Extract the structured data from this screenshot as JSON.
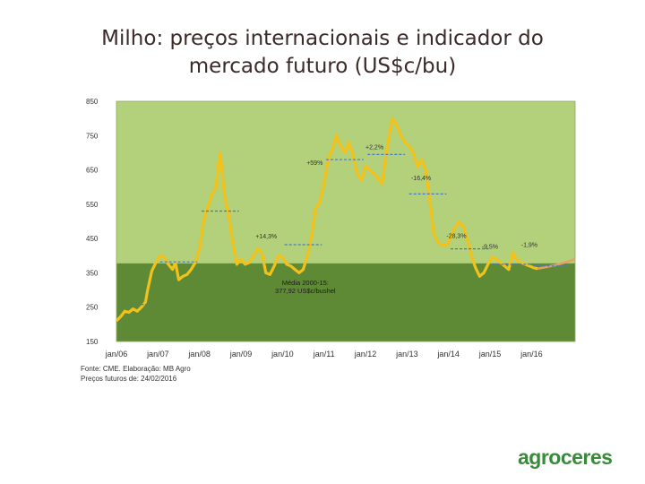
{
  "title_line1": "Milho: preços internacionais e indicador do",
  "title_line2": "mercado futuro (US$c/bu)",
  "source_line1": "Fonte: CME. Elaboração: MB Agro",
  "source_line2": "Preços futuros de:  24/02/2016",
  "logo_text": "agroceres",
  "colors": {
    "plot_bg_upper": "#b3d07a",
    "plot_bg_lower": "#5f8a35",
    "price_line": "#f2c21a",
    "futures_line": "#e8a060",
    "avg_dash": "#4a78c0",
    "logo": "#3a8a3c"
  },
  "chart_data": {
    "type": "line",
    "title": "Milho: preços internacionais e indicador do mercado futuro (US$c/bu)",
    "xlabel": "",
    "ylabel": "",
    "ylim": [
      150,
      850
    ],
    "yticks": [
      850,
      750,
      650,
      550,
      450,
      350,
      250,
      150
    ],
    "xlim": [
      2006.0,
      2017.05
    ],
    "xticks": [
      {
        "x": 2006,
        "label": "jan/06"
      },
      {
        "x": 2007,
        "label": "jan/07"
      },
      {
        "x": 2008,
        "label": "jan/08"
      },
      {
        "x": 2009,
        "label": "jan/09"
      },
      {
        "x": 2010,
        "label": "jan/10"
      },
      {
        "x": 2011,
        "label": "jan/11"
      },
      {
        "x": 2012,
        "label": "jan/12"
      },
      {
        "x": 2013,
        "label": "jan/13"
      },
      {
        "x": 2014,
        "label": "jan/14"
      },
      {
        "x": 2015,
        "label": "jan/15"
      },
      {
        "x": 2016,
        "label": "jan/16"
      }
    ],
    "average": {
      "value": 377.92,
      "label": "Média 2000-15:\n377,92 US$c/bushel"
    },
    "series": [
      {
        "kind": "historical",
        "points": [
          [
            2006.0,
            210
          ],
          [
            2006.1,
            222
          ],
          [
            2006.2,
            238
          ],
          [
            2006.3,
            235
          ],
          [
            2006.4,
            245
          ],
          [
            2006.5,
            238
          ],
          [
            2006.6,
            250
          ],
          [
            2006.7,
            265
          ],
          [
            2006.75,
            300
          ],
          [
            2006.85,
            355
          ],
          [
            2006.95,
            380
          ],
          [
            2007.05,
            400
          ],
          [
            2007.15,
            395
          ],
          [
            2007.25,
            375
          ],
          [
            2007.35,
            360
          ],
          [
            2007.42,
            380
          ],
          [
            2007.5,
            330
          ],
          [
            2007.6,
            340
          ],
          [
            2007.7,
            345
          ],
          [
            2007.8,
            360
          ],
          [
            2007.9,
            380
          ],
          [
            2008.0,
            420
          ],
          [
            2008.1,
            500
          ],
          [
            2008.2,
            540
          ],
          [
            2008.3,
            580
          ],
          [
            2008.4,
            600
          ],
          [
            2008.45,
            660
          ],
          [
            2008.5,
            700
          ],
          [
            2008.55,
            640
          ],
          [
            2008.6,
            575
          ],
          [
            2008.7,
            520
          ],
          [
            2008.8,
            440
          ],
          [
            2008.9,
            375
          ],
          [
            2009.0,
            390
          ],
          [
            2009.1,
            375
          ],
          [
            2009.2,
            380
          ],
          [
            2009.3,
            400
          ],
          [
            2009.4,
            420
          ],
          [
            2009.5,
            410
          ],
          [
            2009.6,
            350
          ],
          [
            2009.7,
            345
          ],
          [
            2009.8,
            370
          ],
          [
            2009.9,
            400
          ],
          [
            2010.0,
            395
          ],
          [
            2010.1,
            375
          ],
          [
            2010.2,
            370
          ],
          [
            2010.3,
            360
          ],
          [
            2010.4,
            350
          ],
          [
            2010.5,
            360
          ],
          [
            2010.6,
            400
          ],
          [
            2010.7,
            460
          ],
          [
            2010.8,
            540
          ],
          [
            2010.9,
            555
          ],
          [
            2011.0,
            610
          ],
          [
            2011.1,
            680
          ],
          [
            2011.2,
            710
          ],
          [
            2011.3,
            750
          ],
          [
            2011.4,
            720
          ],
          [
            2011.5,
            700
          ],
          [
            2011.6,
            730
          ],
          [
            2011.7,
            690
          ],
          [
            2011.8,
            640
          ],
          [
            2011.9,
            620
          ],
          [
            2012.0,
            660
          ],
          [
            2012.1,
            650
          ],
          [
            2012.2,
            640
          ],
          [
            2012.3,
            625
          ],
          [
            2012.4,
            610
          ],
          [
            2012.5,
            700
          ],
          [
            2012.6,
            770
          ],
          [
            2012.65,
            800
          ],
          [
            2012.75,
            780
          ],
          [
            2012.85,
            750
          ],
          [
            2012.95,
            730
          ],
          [
            2013.05,
            720
          ],
          [
            2013.15,
            700
          ],
          [
            2013.25,
            660
          ],
          [
            2013.35,
            680
          ],
          [
            2013.45,
            650
          ],
          [
            2013.55,
            560
          ],
          [
            2013.65,
            460
          ],
          [
            2013.75,
            440
          ],
          [
            2013.85,
            430
          ],
          [
            2013.95,
            430
          ],
          [
            2014.05,
            450
          ],
          [
            2014.15,
            480
          ],
          [
            2014.25,
            500
          ],
          [
            2014.35,
            485
          ],
          [
            2014.45,
            450
          ],
          [
            2014.55,
            400
          ],
          [
            2014.65,
            365
          ],
          [
            2014.75,
            340
          ],
          [
            2014.85,
            350
          ],
          [
            2014.95,
            375
          ],
          [
            2015.05,
            395
          ],
          [
            2015.15,
            390
          ],
          [
            2015.25,
            380
          ],
          [
            2015.35,
            370
          ],
          [
            2015.45,
            360
          ],
          [
            2015.55,
            410
          ],
          [
            2015.65,
            385
          ],
          [
            2015.75,
            380
          ],
          [
            2015.85,
            375
          ],
          [
            2015.95,
            370
          ],
          [
            2016.05,
            365
          ],
          [
            2016.15,
            362
          ]
        ]
      },
      {
        "kind": "futures",
        "points": [
          [
            2016.15,
            362
          ],
          [
            2016.4,
            368
          ],
          [
            2016.6,
            373
          ],
          [
            2016.8,
            380
          ],
          [
            2017.05,
            390
          ]
        ]
      }
    ],
    "annotations": [
      {
        "text": "+59%",
        "lx": 2010.58,
        "ly": 665,
        "x0": 2011.05,
        "x1": 2011.95,
        "y": 680
      },
      {
        "text": "+2,2%",
        "lx": 2012.0,
        "ly": 710,
        "x0": 2012.05,
        "x1": 2012.95,
        "y": 695
      },
      {
        "text": "-16,4%",
        "lx": 2013.1,
        "ly": 620,
        "x0": 2013.05,
        "x1": 2013.95,
        "y": 580
      },
      {
        "text": "+14,3%",
        "lx": 2009.35,
        "ly": 450,
        "x0": 2010.05,
        "x1": 2010.95,
        "y": 432
      },
      {
        "text": "-28,3%",
        "lx": 2013.95,
        "ly": 452,
        "x0": 2014.05,
        "x1": 2014.95,
        "y": 420
      },
      {
        "text": "-9,5%",
        "lx": 2014.8,
        "ly": 420,
        "x0": 2015.05,
        "x1": 2015.95,
        "y": 375
      },
      {
        "text": "-1,9%",
        "lx": 2015.75,
        "ly": 425,
        "x0": 2016.05,
        "x1": 2016.9,
        "y": 370
      },
      {
        "text": "",
        "lx": 0,
        "ly": 0,
        "x0": 2006.05,
        "x1": 2006.95,
        "y": 258
      },
      {
        "text": "",
        "lx": 0,
        "ly": 0,
        "x0": 2007.05,
        "x1": 2007.95,
        "y": 382
      },
      {
        "text": "",
        "lx": 0,
        "ly": 0,
        "x0": 2008.05,
        "x1": 2008.95,
        "y": 530
      }
    ]
  }
}
